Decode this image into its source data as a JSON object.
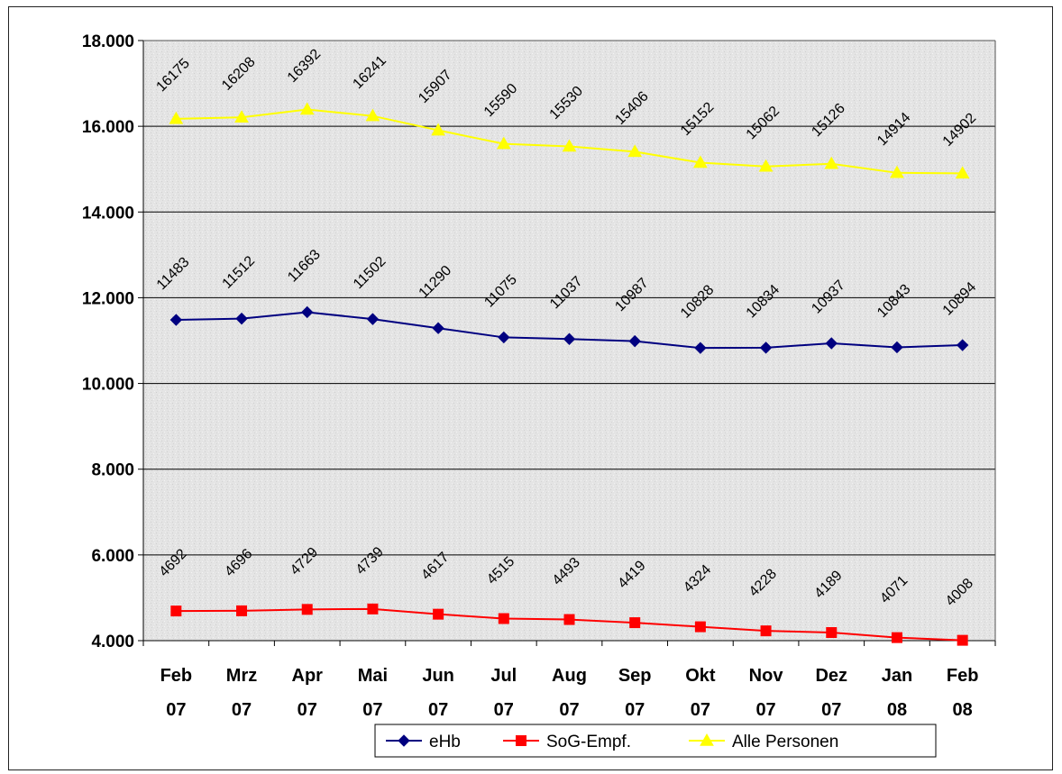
{
  "chart_data": {
    "type": "line",
    "title": "",
    "xlabel": "",
    "ylabel": "",
    "categories": [
      [
        "Feb",
        "07"
      ],
      [
        "Mrz",
        "07"
      ],
      [
        "Apr",
        "07"
      ],
      [
        "Mai",
        "07"
      ],
      [
        "Jun",
        "07"
      ],
      [
        "Jul",
        "07"
      ],
      [
        "Aug",
        "07"
      ],
      [
        "Sep",
        "07"
      ],
      [
        "Okt",
        "07"
      ],
      [
        "Nov",
        "07"
      ],
      [
        "Dez",
        "07"
      ],
      [
        "Jan",
        "08"
      ],
      [
        "Feb",
        "08"
      ]
    ],
    "ylim": [
      4000,
      18000
    ],
    "yticks": [
      4000,
      6000,
      8000,
      10000,
      12000,
      14000,
      16000,
      18000
    ],
    "ytick_labels": [
      "4.000",
      "6.000",
      "8.000",
      "10.000",
      "12.000",
      "14.000",
      "16.000",
      "18.000"
    ],
    "grid": true,
    "legend_position": "bottom",
    "series": [
      {
        "name": "eHb",
        "color": "#000080",
        "marker": "diamond",
        "values": [
          11483,
          11512,
          11663,
          11502,
          11290,
          11075,
          11037,
          10987,
          10828,
          10834,
          10937,
          10843,
          10894
        ]
      },
      {
        "name": "SoG-Empf.",
        "color": "#ff0000",
        "marker": "square",
        "values": [
          4692,
          4696,
          4729,
          4739,
          4617,
          4515,
          4493,
          4419,
          4324,
          4228,
          4189,
          4071,
          4008
        ]
      },
      {
        "name": "Alle Personen",
        "color": "#ffff00",
        "marker": "triangle",
        "values": [
          16175,
          16208,
          16392,
          16241,
          15907,
          15590,
          15530,
          15406,
          15152,
          15062,
          15126,
          14914,
          14902
        ]
      }
    ]
  }
}
